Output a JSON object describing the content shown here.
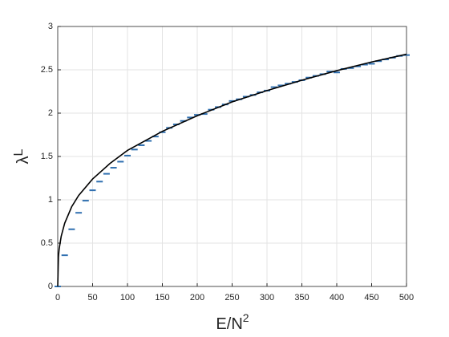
{
  "chart_data": {
    "type": "line",
    "xlabel": {
      "base": "E/N",
      "superscript": "2"
    },
    "ylabel": {
      "symbol": "λ",
      "subscript": "L"
    },
    "xlim": [
      0,
      500
    ],
    "xticks": [
      0,
      50,
      100,
      150,
      200,
      250,
      300,
      350,
      400,
      450,
      500
    ],
    "ylim": [
      0,
      3
    ],
    "yticks": [
      0,
      0.5,
      1,
      1.5,
      2,
      2.5,
      3
    ],
    "grid": true,
    "series": [
      {
        "style": "markers",
        "color": "#3070b0",
        "x": [
          0,
          10,
          20,
          30,
          40,
          50,
          60,
          70,
          80,
          90,
          100,
          110,
          120,
          130,
          140,
          150,
          160,
          170,
          180,
          190,
          200,
          210,
          220,
          230,
          240,
          250,
          260,
          270,
          280,
          290,
          300,
          310,
          320,
          330,
          340,
          350,
          360,
          370,
          380,
          390,
          400,
          410,
          420,
          430,
          440,
          450,
          460,
          470,
          480,
          490,
          500
        ],
        "values": [
          0,
          0.36,
          0.66,
          0.85,
          0.99,
          1.11,
          1.21,
          1.3,
          1.37,
          1.44,
          1.51,
          1.58,
          1.63,
          1.68,
          1.73,
          1.78,
          1.83,
          1.87,
          1.91,
          1.95,
          1.98,
          1.99,
          2.04,
          2.07,
          2.1,
          2.14,
          2.16,
          2.19,
          2.21,
          2.24,
          2.26,
          2.3,
          2.32,
          2.34,
          2.36,
          2.38,
          2.41,
          2.43,
          2.45,
          2.48,
          2.47,
          2.51,
          2.52,
          2.54,
          2.56,
          2.57,
          2.6,
          2.62,
          2.64,
          2.66,
          2.67
        ]
      },
      {
        "style": "line",
        "color": "#000000",
        "x": [
          0,
          1,
          2,
          5,
          10,
          20,
          30,
          50,
          75,
          100,
          150,
          200,
          250,
          300,
          350,
          400,
          450,
          500
        ],
        "values": [
          0,
          0.34,
          0.43,
          0.58,
          0.73,
          0.92,
          1.05,
          1.24,
          1.42,
          1.57,
          1.79,
          1.97,
          2.13,
          2.26,
          2.38,
          2.49,
          2.59,
          2.68
        ]
      }
    ]
  }
}
